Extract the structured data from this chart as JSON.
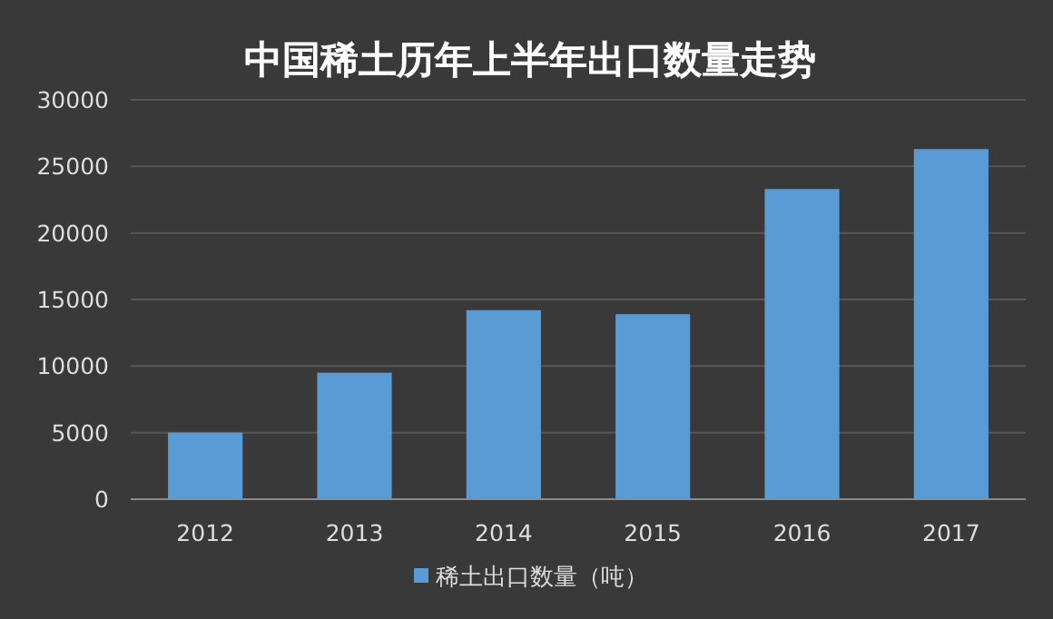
{
  "chart_data": {
    "type": "bar",
    "title": "中国稀土历年上半年出口数量走势",
    "categories": [
      "2012",
      "2013",
      "2014",
      "2015",
      "2016",
      "2017"
    ],
    "series": [
      {
        "name": "稀土出口数量（吨）",
        "color": "#5b9bd5",
        "values": [
          5000,
          9500,
          14200,
          13900,
          23300,
          26300
        ]
      }
    ],
    "ylim": [
      0,
      30000
    ],
    "yticks": [
      0,
      5000,
      10000,
      15000,
      20000,
      25000,
      30000
    ],
    "grid": "y",
    "legend": "bottom"
  }
}
